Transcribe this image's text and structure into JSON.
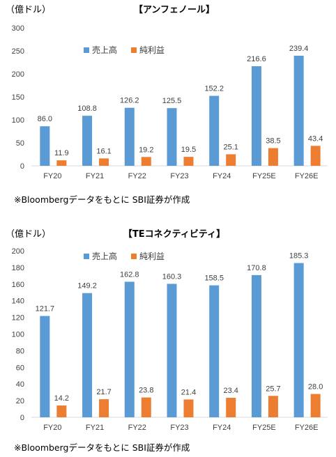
{
  "chart_data": [
    {
      "type": "bar",
      "title": "【アンフェノール】",
      "unit": "（億ドル）",
      "categories": [
        "FY20",
        "FY21",
        "FY22",
        "FY23",
        "FY24",
        "FY25E",
        "FY26E"
      ],
      "yticks": [
        0,
        50,
        100,
        150,
        200,
        250,
        300
      ],
      "ylim": [
        0,
        300
      ],
      "grid": false,
      "legend_position": "top-center",
      "series": [
        {
          "name": "売上高",
          "color": "#5B9BD5",
          "values": [
            86.0,
            108.8,
            126.2,
            125.5,
            152.2,
            216.6,
            239.4
          ]
        },
        {
          "name": "純利益",
          "color": "#ED7D31",
          "values": [
            11.9,
            16.1,
            19.2,
            19.5,
            25.1,
            38.5,
            43.4
          ]
        }
      ],
      "note": "※Bloombergデータをもとに SBI証券が作成"
    },
    {
      "type": "bar",
      "title": "【TEコネクティビティ】",
      "unit": "（億ドル）",
      "categories": [
        "FY20",
        "FY21",
        "FY22",
        "FY23",
        "FY24",
        "FY25E",
        "FY26E"
      ],
      "yticks": [
        0,
        20,
        40,
        60,
        80,
        100,
        120,
        140,
        160,
        180,
        200
      ],
      "ylim": [
        0,
        200
      ],
      "grid": false,
      "legend_position": "top-center",
      "series": [
        {
          "name": "売上高",
          "color": "#5B9BD5",
          "values": [
            121.7,
            149.2,
            162.8,
            160.3,
            158.5,
            170.8,
            185.3
          ]
        },
        {
          "name": "純利益",
          "color": "#ED7D31",
          "values": [
            14.2,
            21.7,
            23.8,
            21.4,
            23.4,
            25.7,
            28.0
          ]
        }
      ],
      "note": "※Bloombergデータをもとに SBI証券が作成"
    }
  ]
}
